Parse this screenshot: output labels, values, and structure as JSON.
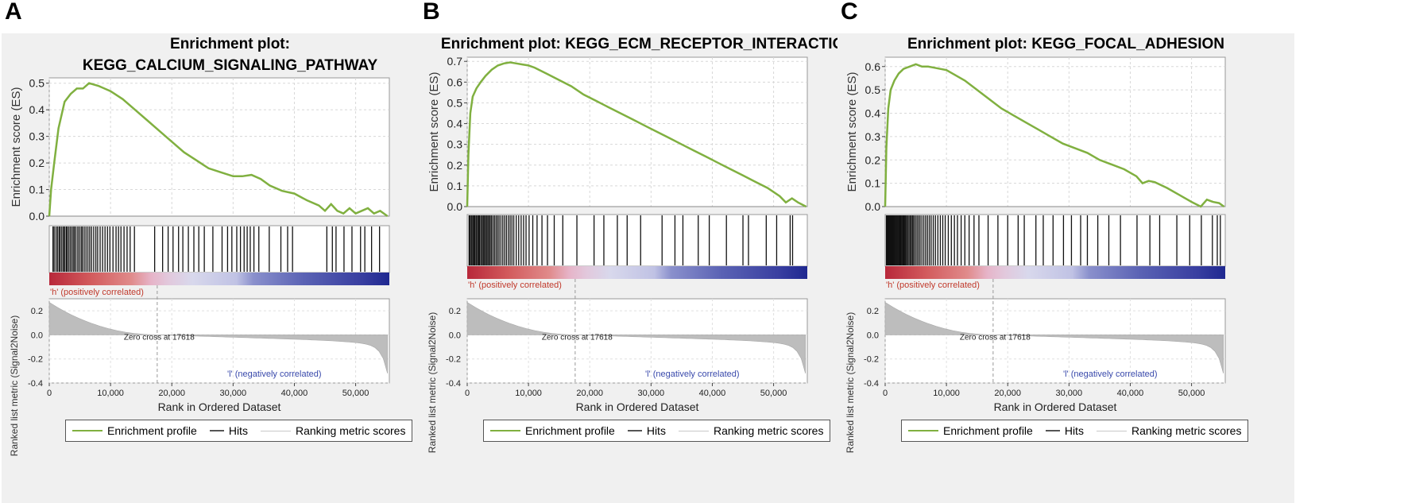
{
  "panels": [
    {
      "letter": "A",
      "title_lines": [
        "Enrichment plot:",
        "KEGG_CALCIUM_SIGNALING_PATHWAY"
      ]
    },
    {
      "letter": "B",
      "title_lines": [
        "Enrichment plot: KEGG_ECM_RECEPTOR_INTERACTION"
      ]
    },
    {
      "letter": "C",
      "title_lines": [
        "Enrichment plot: KEGG_FOCAL_ADHESION"
      ]
    }
  ],
  "labels": {
    "es_ylabel": "Enrichment score (ES)",
    "metric_ylabel": "Ranked list metric (Signal2Noise)",
    "xlabel": "Rank in Ordered Dataset",
    "pos_label": "'h' (positively correlated)",
    "neg_label": "'l' (negatively correlated)",
    "zero_cross": "Zero cross at 17618"
  },
  "legend": [
    {
      "label": "Enrichment profile",
      "color": "#80b040"
    },
    {
      "label": "Hits",
      "color": "#555555"
    },
    {
      "label": "Ranking metric scores",
      "color": "#c8c8c8"
    }
  ],
  "colors": {
    "es_line": "#80b040",
    "metric_fill": "#bdbdbd",
    "pos_text": "#c0392b",
    "neg_text": "#3949ab"
  },
  "chart_data": [
    {
      "type": "line",
      "title": "Enrichment plot: KEGG_CALCIUM_SIGNALING_PATHWAY",
      "xlabel": "Rank in Ordered Dataset",
      "ylabel": "Enrichment score (ES)",
      "xlim": [
        0,
        55500
      ],
      "ylim": [
        0,
        0.52
      ],
      "yticks": [
        0.0,
        0.1,
        0.2,
        0.3,
        0.4,
        0.5
      ],
      "xticks": [
        0,
        10000,
        20000,
        30000,
        40000,
        50000
      ],
      "x": [
        0,
        300,
        800,
        1500,
        2500,
        3500,
        4500,
        5500,
        6500,
        8000,
        10000,
        12000,
        14000,
        16000,
        18000,
        20000,
        22000,
        24000,
        26000,
        28000,
        30000,
        31500,
        33000,
        34500,
        36000,
        38000,
        40000,
        42000,
        44000,
        45000,
        46000,
        47000,
        48000,
        49000,
        50000,
        51000,
        52000,
        53000,
        54000,
        55200
      ],
      "es": [
        0.0,
        0.1,
        0.2,
        0.33,
        0.43,
        0.46,
        0.48,
        0.48,
        0.5,
        0.49,
        0.47,
        0.44,
        0.4,
        0.36,
        0.32,
        0.28,
        0.24,
        0.21,
        0.18,
        0.165,
        0.15,
        0.15,
        0.155,
        0.14,
        0.115,
        0.095,
        0.085,
        0.06,
        0.04,
        0.02,
        0.045,
        0.02,
        0.01,
        0.03,
        0.01,
        0.02,
        0.03,
        0.01,
        0.02,
        0.0
      ],
      "hits": [
        600,
        800,
        1100,
        1350,
        1600,
        1800,
        2050,
        2300,
        2500,
        2750,
        2900,
        3150,
        3400,
        3650,
        3900,
        4100,
        4350,
        4650,
        4900,
        5200,
        5400,
        5700,
        6000,
        6300,
        6600,
        6900,
        7250,
        7600,
        7900,
        8300,
        8700,
        9100,
        9500,
        9900,
        10400,
        10900,
        11300,
        11700,
        12200,
        12700,
        13200,
        13900,
        17200,
        18500,
        19400,
        20200,
        21100,
        21800,
        22700,
        23600,
        24400,
        25300,
        26700,
        28200,
        29100,
        29800,
        30600,
        31200,
        31800,
        32300,
        32800,
        33400,
        34200,
        35900,
        37800,
        38900,
        39700,
        45300,
        46200,
        46800,
        48100,
        49400,
        50800,
        51500,
        52600,
        53900
      ],
      "metric_ylim": [
        -0.4,
        0.3
      ],
      "metric_yticks": [
        0.2,
        0.0,
        -0.2,
        -0.4
      ],
      "zero_cross": 17618
    },
    {
      "type": "line",
      "title": "Enrichment plot: KEGG_ECM_RECEPTOR_INTERACTION",
      "xlabel": "Rank in Ordered Dataset",
      "ylabel": "Enrichment score (ES)",
      "xlim": [
        0,
        55500
      ],
      "ylim": [
        0,
        0.72
      ],
      "yticks": [
        0.0,
        0.1,
        0.2,
        0.3,
        0.4,
        0.5,
        0.6,
        0.7
      ],
      "xticks": [
        0,
        10000,
        20000,
        30000,
        40000,
        50000
      ],
      "x": [
        0,
        200,
        500,
        900,
        1500,
        2200,
        3000,
        4000,
        5000,
        6000,
        7000,
        8000,
        9000,
        10000,
        11000,
        13000,
        15000,
        17000,
        19000,
        21000,
        23000,
        25000,
        27000,
        29000,
        31000,
        33000,
        35000,
        37000,
        39000,
        41000,
        43000,
        45000,
        47000,
        49000,
        51000,
        52000,
        53000,
        54000,
        55300
      ],
      "es": [
        0.0,
        0.25,
        0.45,
        0.53,
        0.57,
        0.6,
        0.63,
        0.66,
        0.68,
        0.69,
        0.695,
        0.69,
        0.685,
        0.68,
        0.67,
        0.64,
        0.61,
        0.58,
        0.54,
        0.51,
        0.48,
        0.45,
        0.42,
        0.39,
        0.36,
        0.33,
        0.3,
        0.27,
        0.24,
        0.21,
        0.18,
        0.15,
        0.12,
        0.09,
        0.05,
        0.02,
        0.04,
        0.02,
        0.0
      ],
      "hits": [
        300,
        450,
        650,
        800,
        1000,
        1150,
        1300,
        1500,
        1700,
        1850,
        2000,
        2200,
        2400,
        2600,
        2750,
        2950,
        3150,
        3350,
        3550,
        3750,
        3950,
        4200,
        4450,
        4700,
        4950,
        5200,
        5500,
        5800,
        6100,
        6400,
        6700,
        7000,
        7300,
        7600,
        8000,
        8400,
        8800,
        9200,
        9600,
        10100,
        10700,
        11400,
        12200,
        13100,
        14200,
        15600,
        17900,
        20700,
        22300,
        24500,
        26100,
        28300,
        31800,
        33900,
        35200,
        37700,
        39500,
        42300,
        45000,
        45900,
        48800,
        50500,
        52700,
        53100
      ],
      "metric_ylim": [
        -0.4,
        0.3
      ],
      "metric_yticks": [
        0.2,
        0.0,
        -0.2,
        -0.4
      ],
      "zero_cross": 17618
    },
    {
      "type": "line",
      "title": "Enrichment plot: KEGG_FOCAL_ADHESION",
      "xlabel": "Rank in Ordered Dataset",
      "ylabel": "Enrichment score (ES)",
      "xlim": [
        0,
        55500
      ],
      "ylim": [
        0,
        0.64
      ],
      "yticks": [
        0.0,
        0.1,
        0.2,
        0.3,
        0.4,
        0.5,
        0.6
      ],
      "xticks": [
        0,
        10000,
        20000,
        30000,
        40000,
        50000
      ],
      "x": [
        0,
        200,
        500,
        900,
        1500,
        2200,
        3000,
        4000,
        5000,
        6000,
        7000,
        8000,
        9000,
        10000,
        11000,
        13000,
        15000,
        17000,
        19000,
        21000,
        23000,
        25000,
        27000,
        29000,
        31000,
        33000,
        35000,
        37000,
        39000,
        41000,
        42000,
        43000,
        44000,
        46000,
        48000,
        50000,
        51500,
        52500,
        53500,
        54500,
        55300
      ],
      "es": [
        0.0,
        0.25,
        0.42,
        0.5,
        0.54,
        0.57,
        0.59,
        0.6,
        0.61,
        0.6,
        0.6,
        0.595,
        0.59,
        0.585,
        0.57,
        0.54,
        0.5,
        0.46,
        0.42,
        0.39,
        0.36,
        0.33,
        0.3,
        0.27,
        0.25,
        0.23,
        0.2,
        0.18,
        0.16,
        0.13,
        0.1,
        0.11,
        0.105,
        0.08,
        0.05,
        0.02,
        0.0,
        0.03,
        0.02,
        0.015,
        0.0
      ],
      "hits": [
        200,
        320,
        440,
        560,
        680,
        800,
        920,
        1040,
        1160,
        1280,
        1400,
        1520,
        1650,
        1780,
        1910,
        2040,
        2180,
        2320,
        2460,
        2600,
        2750,
        2900,
        3050,
        3200,
        3350,
        3500,
        3700,
        3900,
        4100,
        4300,
        4500,
        4700,
        4950,
        5200,
        5450,
        5700,
        6000,
        6300,
        6600,
        6900,
        7200,
        7500,
        7850,
        8200,
        8600,
        9000,
        9400,
        9800,
        10300,
        10800,
        11300,
        11800,
        12400,
        13000,
        13700,
        14500,
        15300,
        16800,
        18400,
        20000,
        21700,
        22700,
        24600,
        25800,
        27400,
        29100,
        30400,
        31900,
        33000,
        34700,
        36500,
        38400,
        41100,
        43200,
        44800,
        47600,
        49700,
        51600,
        53400,
        54200,
        54700
      ],
      "metric_ylim": [
        -0.4,
        0.3
      ],
      "metric_yticks": [
        0.2,
        0.0,
        -0.2,
        -0.4
      ],
      "zero_cross": 17618
    }
  ]
}
